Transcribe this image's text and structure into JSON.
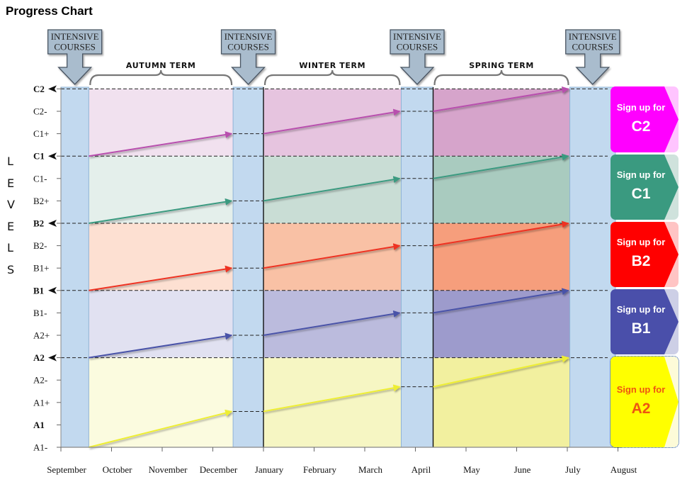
{
  "title": "Progress Chart",
  "vertical_label_letters": [
    "L",
    "E",
    "V",
    "E",
    "L",
    "S"
  ],
  "chart_data": {
    "type": "diagram",
    "title": "Progress Chart",
    "ylabel": "LEVELS",
    "y_levels": [
      "A1-",
      "A1",
      "A1+",
      "A2-",
      "A2",
      "A2+",
      "B1-",
      "B1",
      "B1+",
      "B2-",
      "B2",
      "B2+",
      "C1-",
      "C1",
      "C1+",
      "C2-",
      "C2"
    ],
    "major_levels": [
      "A1",
      "A2",
      "B1",
      "B2",
      "C1",
      "C2"
    ],
    "x_months": [
      "September",
      "October",
      "November",
      "December",
      "January",
      "February",
      "March",
      "April",
      "May",
      "June",
      "July",
      "August"
    ],
    "intensive_label": "INTENSIVE\nCOURSES",
    "intensive_periods": [
      {
        "label": "INTENSIVE COURSES",
        "start_month": 0.0,
        "end_month": 0.55
      },
      {
        "label": "INTENSIVE COURSES",
        "start_month": 3.4,
        "end_month": 4.0
      },
      {
        "label": "INTENSIVE COURSES",
        "start_month": 6.72,
        "end_month": 7.35
      },
      {
        "label": "INTENSIVE COURSES",
        "start_month": 10.05,
        "end_month": 10.95
      }
    ],
    "terms": [
      {
        "label": "AUTUMN TERM",
        "start_month": 0.55,
        "end_month": 3.4
      },
      {
        "label": "WINTER TERM",
        "start_month": 4.0,
        "end_month": 6.72
      },
      {
        "label": "SPRING TERM",
        "start_month": 7.35,
        "end_month": 10.05
      }
    ],
    "bands": [
      {
        "name": "C2",
        "from_level": "C1",
        "to_level": "C2",
        "color": "#b84fae",
        "term_fills": [
          "#f1e1ef",
          "#e6c4df",
          "#d6a4cb"
        ]
      },
      {
        "name": "C1",
        "from_level": "B2",
        "to_level": "C1",
        "color": "#3a9a80",
        "term_fills": [
          "#e4efeb",
          "#c9ddd5",
          "#a9cbbf"
        ]
      },
      {
        "name": "B2",
        "from_level": "B1",
        "to_level": "B2",
        "color": "#ee3322",
        "term_fills": [
          "#fde0d2",
          "#f9c1a5",
          "#f69e7c"
        ]
      },
      {
        "name": "B1",
        "from_level": "A2",
        "to_level": "B1",
        "color": "#4a52a8",
        "term_fills": [
          "#e1e1f1",
          "#bbbbdd",
          "#9d9bcc"
        ]
      },
      {
        "name": "A2",
        "from_level": "A1-",
        "to_level": "A2",
        "color": "#eeee33",
        "term_fills": [
          "#fbfbdf",
          "#f6f6c3",
          "#f2f09f"
        ]
      }
    ],
    "progress_arrows": [
      {
        "band": "C2",
        "segments": [
          {
            "from": 13.0,
            "to": 14.0
          },
          {
            "from": 14.0,
            "to": 15.0
          },
          {
            "from": 15.0,
            "to": 16.0
          }
        ]
      },
      {
        "band": "C1",
        "segments": [
          {
            "from": 10.0,
            "to": 11.0
          },
          {
            "from": 11.0,
            "to": 12.0
          },
          {
            "from": 12.0,
            "to": 13.0
          }
        ]
      },
      {
        "band": "B2",
        "segments": [
          {
            "from": 7.0,
            "to": 8.0
          },
          {
            "from": 8.0,
            "to": 9.0
          },
          {
            "from": 9.0,
            "to": 10.0
          }
        ]
      },
      {
        "band": "B1",
        "segments": [
          {
            "from": 4.0,
            "to": 5.0
          },
          {
            "from": 5.0,
            "to": 6.0
          },
          {
            "from": 6.0,
            "to": 7.0
          }
        ]
      },
      {
        "band": "A2",
        "segments": [
          {
            "from": 0.0,
            "to": 1.6
          },
          {
            "from": 1.6,
            "to": 2.7
          },
          {
            "from": 2.7,
            "to": 4.0
          }
        ]
      }
    ],
    "grid": false
  },
  "signup_buttons": [
    {
      "line1": "Sign up for",
      "level": "C2",
      "bg": "#ff00ff",
      "tip": "#ffc4ff",
      "text_color": "#ffffff"
    },
    {
      "line1": "Sign up for",
      "level": "C1",
      "bg": "#3a9a80",
      "tip": "#cfe2dc",
      "text_color": "#ffffff"
    },
    {
      "line1": "Sign up for",
      "level": "B2",
      "bg": "#ff0000",
      "tip": "#ffc4c4",
      "text_color": "#ffffff"
    },
    {
      "line1": "Sign up for",
      "level": "B1",
      "bg": "#4a4faa",
      "tip": "#cdcfe6",
      "text_color": "#ffffff"
    },
    {
      "line1": "Sign up for",
      "level": "A2",
      "bg": "#ffff00",
      "tip": "#fdfbd8",
      "text_color": "#ee5511"
    }
  ],
  "colors": {
    "intensive_column": "#c2d9ef",
    "callout_fill": "#a9bccd",
    "callout_stroke": "#4a5563",
    "dashed_line": "#222222"
  }
}
